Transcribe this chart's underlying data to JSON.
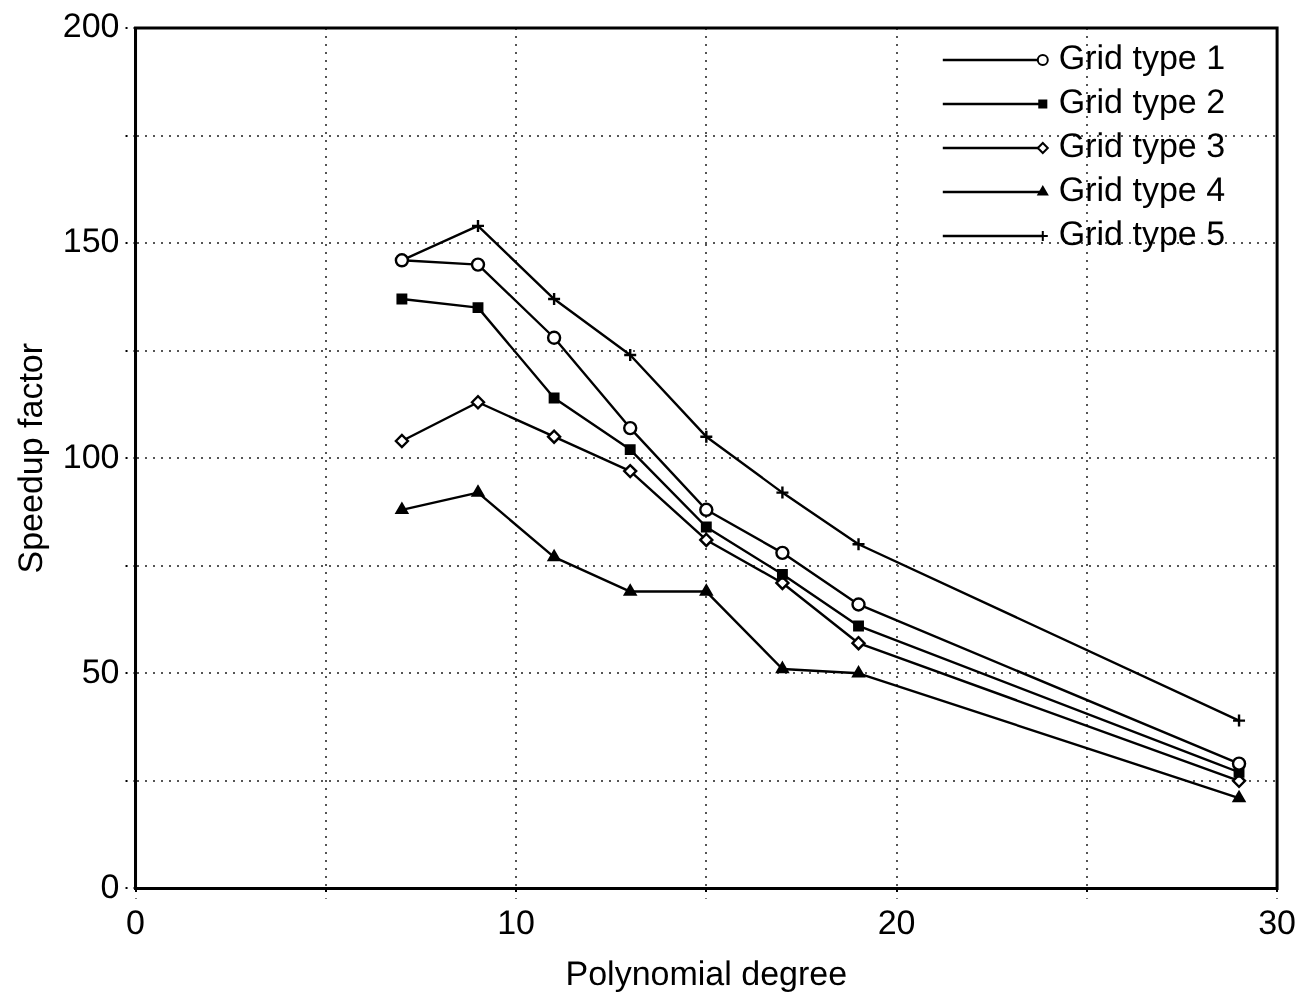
{
  "chart_data": {
    "type": "line",
    "xlabel": "Polynomial degree",
    "ylabel": "Speedup factor",
    "xlim": [
      0,
      30
    ],
    "xticks": [
      0,
      {
        "value": 5,
        "label": null
      },
      10,
      {
        "value": 15,
        "label": null
      },
      20,
      {
        "value": 25,
        "label": null
      },
      30
    ],
    "ylim": [
      0,
      200
    ],
    "yticks": [
      0,
      {
        "value": 25,
        "label": null
      },
      50,
      {
        "value": 75,
        "label": null
      },
      100,
      {
        "value": 125,
        "label": null
      },
      150,
      {
        "value": 175,
        "label": null
      },
      200
    ],
    "grid": true,
    "legend": "top right",
    "line_style": "solid",
    "x": [
      7,
      9,
      11,
      13,
      15,
      17,
      19,
      29
    ],
    "series": [
      {
        "name": "Grid type 1",
        "color": "#000000",
        "marker": "circle",
        "values": [
          146,
          145,
          128,
          107,
          88,
          78,
          66,
          29
        ]
      },
      {
        "name": "Grid type 2",
        "color": "#000000",
        "marker": "square",
        "values": [
          137,
          135,
          114,
          102,
          84,
          73,
          61,
          27
        ]
      },
      {
        "name": "Grid type 3",
        "color": "#000000",
        "marker": "diamond",
        "values": [
          104,
          113,
          105,
          97,
          81,
          71,
          57,
          25
        ]
      },
      {
        "name": "Grid type 4",
        "color": "#000000",
        "marker": "triangle",
        "values": [
          88,
          92,
          77,
          69,
          69,
          51,
          50,
          21
        ]
      },
      {
        "name": "Grid type 5",
        "color": "#000000",
        "marker": "cross",
        "values": [
          146,
          154,
          137,
          124,
          105,
          92,
          80,
          39
        ]
      }
    ]
  }
}
